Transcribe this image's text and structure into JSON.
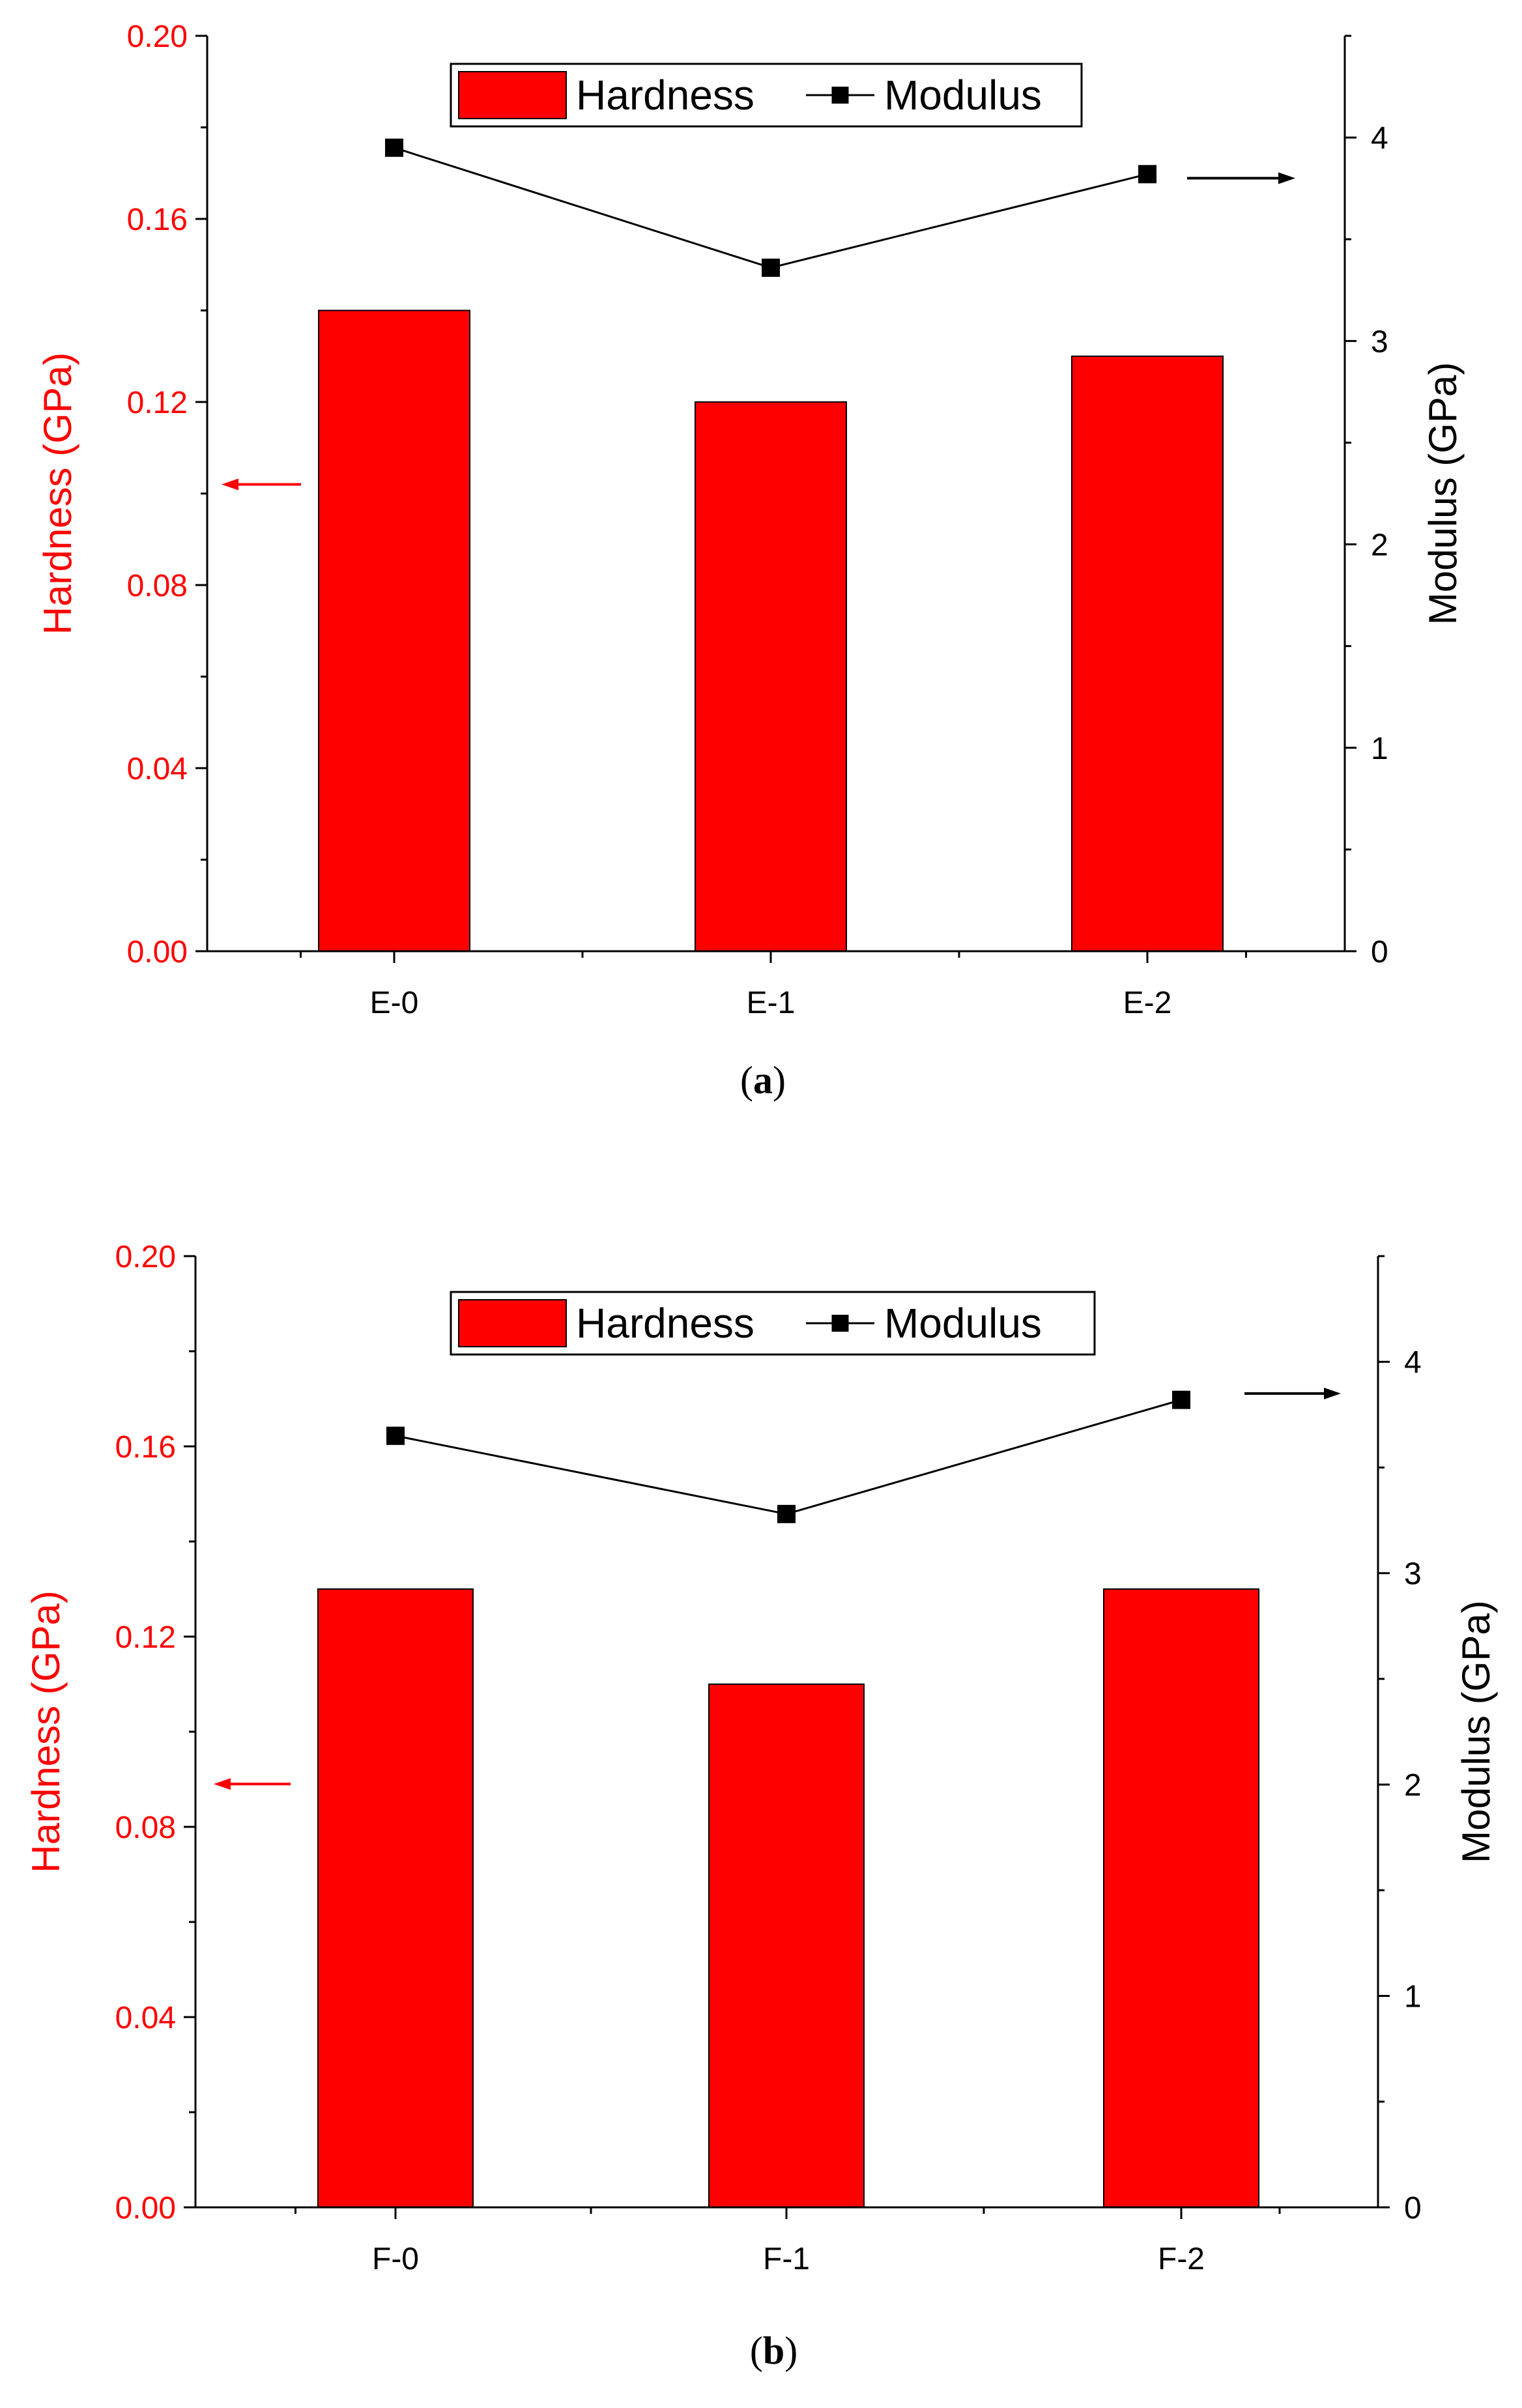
{
  "colors": {
    "hardness": "#ff0000",
    "modulus": "#000000",
    "axis_left": "#ff0000",
    "axis_right": "#000000"
  },
  "chart_data": [
    {
      "panel": "(a)",
      "caption_letter": "a",
      "type": "bar",
      "categories": [
        "E-0",
        "E-1",
        "E-2"
      ],
      "series": [
        {
          "name": "Hardness",
          "type": "bar",
          "axis": "left",
          "values": [
            0.14,
            0.12,
            0.13
          ]
        },
        {
          "name": "Modulus",
          "type": "line",
          "marker": "square",
          "axis": "right",
          "values": [
            3.95,
            3.36,
            3.82
          ]
        }
      ],
      "ylabel_left": "Hardness (GPa)",
      "ylabel_right": "Modulus (GPa)",
      "ylim_left": [
        0,
        0.2
      ],
      "ylim_right": [
        0,
        4.5
      ],
      "yticks_left": [
        "0.00",
        "0.04",
        "0.08",
        "0.12",
        "0.16",
        "0.20"
      ],
      "yticks_left_values": [
        0,
        0.04,
        0.08,
        0.12,
        0.16,
        0.2
      ],
      "yticks_right": [
        "0",
        "1",
        "2",
        "3",
        "4"
      ],
      "yticks_right_values": [
        0,
        1,
        2,
        3,
        4
      ],
      "left_arrow_value": 0.102,
      "right_arrow_value": 3.8,
      "legend": {
        "placement": "top-center",
        "entries": [
          "Hardness",
          "Modulus"
        ]
      }
    },
    {
      "panel": "(b)",
      "caption_letter": "b",
      "type": "bar",
      "categories": [
        "F-0",
        "F-1",
        "F-2"
      ],
      "series": [
        {
          "name": "Hardness",
          "type": "bar",
          "axis": "left",
          "values": [
            0.13,
            0.11,
            0.13
          ]
        },
        {
          "name": "Modulus",
          "type": "line",
          "marker": "square",
          "axis": "right",
          "values": [
            3.65,
            3.28,
            3.82
          ]
        }
      ],
      "ylabel_left": "Hardness (GPa)",
      "ylabel_right": "Modulus (GPa)",
      "ylim_left": [
        0,
        0.2
      ],
      "ylim_right": [
        0,
        4.5
      ],
      "yticks_left": [
        "0.00",
        "0.04",
        "0.08",
        "0.12",
        "0.16",
        "0.20"
      ],
      "yticks_left_values": [
        0,
        0.04,
        0.08,
        0.12,
        0.16,
        0.2
      ],
      "yticks_right": [
        "0",
        "1",
        "2",
        "3",
        "4"
      ],
      "yticks_right_values": [
        0,
        1,
        2,
        3,
        4
      ],
      "left_arrow_value": 0.089,
      "right_arrow_value": 3.85,
      "legend": {
        "placement": "top-center",
        "entries": [
          "Hardness",
          "Modulus"
        ]
      }
    }
  ]
}
